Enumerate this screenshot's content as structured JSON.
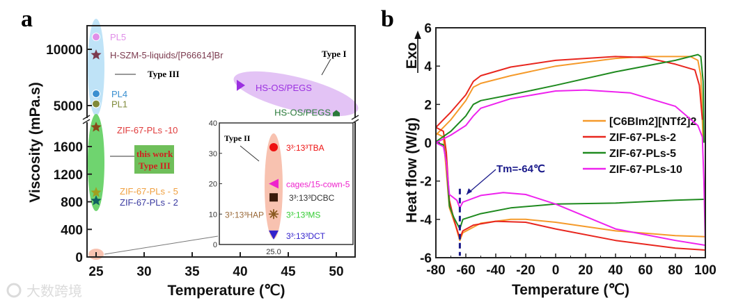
{
  "chart_data": [
    {
      "panel_label": "a",
      "type": "scatter",
      "xlabel": "Temperature (℃)",
      "ylabel": "Viscosity (mPa.s)",
      "xlim": [
        24,
        51.5
      ],
      "x_ticks": [
        25,
        30,
        35,
        40,
        45,
        50
      ],
      "y_lower": {
        "range": [
          0,
          1950
        ],
        "ticks": [
          0,
          400,
          800,
          1200,
          1600
        ]
      },
      "y_upper": {
        "range": [
          4300,
          11600
        ],
        "ticks": [
          5000,
          10000
        ]
      },
      "y_broken": true,
      "points": [
        {
          "label": "PL5",
          "x": 25,
          "y": 11100,
          "marker": "sphere",
          "color": "#e08ee8"
        },
        {
          "label": "H-SZM-5-liquids/[P66614]Br",
          "x": 25,
          "y": 9500,
          "marker": "star",
          "color": "#7b3a4e"
        },
        {
          "label": "PL4",
          "x": 25,
          "y": 6050,
          "marker": "sphere",
          "color": "#3a8fd0"
        },
        {
          "label": "PL1",
          "x": 25,
          "y": 5150,
          "marker": "sphere",
          "color": "#7f8a3a"
        },
        {
          "label": "ZIF-67-PLs -10",
          "x": 25,
          "y": 1880,
          "marker": "star",
          "color": "#8a4a1a",
          "text_color": "#e03a3a"
        },
        {
          "label": "ZIF-67-PLs - 5",
          "x": 25,
          "y": 935,
          "marker": "star",
          "color": "#a0a020",
          "text_color": "#f0a040"
        },
        {
          "label": "ZIF-67-PLs - 2",
          "x": 25,
          "y": 815,
          "marker": "star",
          "color": "#106060",
          "text_color": "#3a3aa0"
        },
        {
          "label": "HS-OS/PEGS",
          "x": 40,
          "y": 6800,
          "marker": "triangle-right",
          "color": "#9b30e0"
        },
        {
          "label": "HS-OS/PEGS",
          "x": 50,
          "y": 4300,
          "marker": "pentagon",
          "color": "#2a7a3a"
        }
      ],
      "annotations": {
        "type1": "Type I",
        "type3": "Type III",
        "this_work": "this work",
        "this_work_type": "Type III",
        "type2": "Type II"
      },
      "inset": {
        "ylim": [
          0,
          40
        ],
        "y_ticks": [
          0,
          10,
          20,
          30,
          40
        ],
        "x_tick": "25.0",
        "points": [
          {
            "label": "3³:13³TBA",
            "y": 32,
            "marker": "circle",
            "color": "#ee1111"
          },
          {
            "label": "cages/15-cown-5",
            "y": 20,
            "marker": "triangle-left",
            "color": "#ee22cc"
          },
          {
            "label": "3³:13³DCBC",
            "y": 15.5,
            "marker": "square",
            "color": "#3a1a0a",
            "text_color": "#333"
          },
          {
            "label": "3³:13³MS",
            "y": 10,
            "marker": "asterisk",
            "color": "#8a5a20",
            "text_color": "#33cc33"
          },
          {
            "label": "3³:13³HAP",
            "y": 10,
            "marker": "none",
            "color": "#8a5a20",
            "text_color": "#9a6a3a"
          },
          {
            "label": "3³:13³DCT",
            "y": 3,
            "marker": "triangle-down",
            "color": "#3322cc",
            "text_color": "#3322cc"
          }
        ]
      }
    },
    {
      "panel_label": "b",
      "type": "line",
      "xlabel": "Temperature (℃)",
      "ylabel": "Heat flow (W/g)",
      "exo_label": "Exo",
      "xlim": [
        -80,
        100
      ],
      "ylim": [
        -6,
        6
      ],
      "x_ticks": [
        -80,
        -60,
        -40,
        -20,
        0,
        20,
        40,
        60,
        80,
        100
      ],
      "y_ticks": [
        -6,
        -4,
        -2,
        0,
        2,
        4,
        6
      ],
      "annotation": {
        "text": "Tm=-64℃",
        "x": -64
      },
      "legend_position": "right",
      "series": [
        {
          "name": "[C6BIm2][NTf2]2",
          "color": "#f59a2a",
          "upper": [
            [
              -80,
              0.4
            ],
            [
              -70,
              1.2
            ],
            [
              -60,
              2.2
            ],
            [
              -55,
              2.9
            ],
            [
              -50,
              3.1
            ],
            [
              -30,
              3.5
            ],
            [
              0,
              4.0
            ],
            [
              40,
              4.4
            ],
            [
              60,
              4.5
            ],
            [
              90,
              4.5
            ],
            [
              95,
              4.3
            ],
            [
              97,
              3.5
            ],
            [
              98.5,
              0
            ]
          ],
          "lower": [
            [
              -80,
              0.5
            ],
            [
              -75,
              0.3
            ],
            [
              -73,
              -1.5
            ],
            [
              -71,
              -3.4
            ],
            [
              -67,
              -4.3
            ],
            [
              -64,
              -5.1
            ],
            [
              -62,
              -4.7
            ],
            [
              -50,
              -4.2
            ],
            [
              -30,
              -4.0
            ],
            [
              -20,
              -4.0
            ],
            [
              0,
              -4.15
            ],
            [
              40,
              -4.6
            ],
            [
              80,
              -4.85
            ],
            [
              100,
              -4.9
            ]
          ]
        },
        {
          "name": "ZIF-67-PLs-2",
          "color": "#e8261e",
          "upper": [
            [
              -80,
              0.8
            ],
            [
              -70,
              1.6
            ],
            [
              -60,
              2.5
            ],
            [
              -55,
              3.2
            ],
            [
              -50,
              3.5
            ],
            [
              -30,
              3.95
            ],
            [
              0,
              4.3
            ],
            [
              40,
              4.5
            ],
            [
              60,
              4.45
            ],
            [
              80,
              4.1
            ],
            [
              93,
              3.8
            ],
            [
              96,
              3.0
            ],
            [
              98,
              1.2
            ]
          ],
          "lower": [
            [
              -80,
              0.8
            ],
            [
              -75,
              0.6
            ],
            [
              -73,
              -0.5
            ],
            [
              -71,
              -3
            ],
            [
              -68,
              -4
            ],
            [
              -64,
              -5.0
            ],
            [
              -62,
              -4.6
            ],
            [
              -55,
              -4.3
            ],
            [
              -40,
              -4.1
            ],
            [
              -20,
              -4.15
            ],
            [
              0,
              -4.5
            ],
            [
              40,
              -5.1
            ],
            [
              80,
              -5.5
            ],
            [
              100,
              -5.6
            ]
          ]
        },
        {
          "name": "ZIF-67-PLs-5",
          "color": "#1f8a1f",
          "upper": [
            [
              -80,
              0.05
            ],
            [
              -70,
              0.6
            ],
            [
              -60,
              1.4
            ],
            [
              -55,
              2.0
            ],
            [
              -50,
              2.2
            ],
            [
              -30,
              2.5
            ],
            [
              0,
              3.0
            ],
            [
              40,
              3.7
            ],
            [
              80,
              4.3
            ],
            [
              95,
              4.6
            ],
            [
              97,
              4.5
            ],
            [
              98.5,
              3.2
            ],
            [
              99,
              0
            ]
          ],
          "lower": [
            [
              -80,
              0
            ],
            [
              -75,
              -0.1
            ],
            [
              -73,
              -1
            ],
            [
              -71,
              -3.3
            ],
            [
              -68,
              -3.9
            ],
            [
              -64,
              -4.5
            ],
            [
              -62,
              -4.0
            ],
            [
              -50,
              -3.7
            ],
            [
              -30,
              -3.4
            ],
            [
              0,
              -3.2
            ],
            [
              40,
              -3.15
            ],
            [
              80,
              -3.0
            ],
            [
              100,
              -2.95
            ]
          ]
        },
        {
          "name": "ZIF-67-PLs-10",
          "color": "#ee22ee",
          "upper": [
            [
              -80,
              0
            ],
            [
              -70,
              0.4
            ],
            [
              -60,
              0.9
            ],
            [
              -55,
              1.4
            ],
            [
              -50,
              1.8
            ],
            [
              -30,
              2.3
            ],
            [
              0,
              2.7
            ],
            [
              20,
              2.75
            ],
            [
              50,
              2.6
            ],
            [
              80,
              1.9
            ],
            [
              95,
              0.9
            ],
            [
              98,
              0.3
            ],
            [
              99,
              -2
            ],
            [
              100,
              -5.3
            ]
          ],
          "lower": [
            [
              -80,
              0
            ],
            [
              -75,
              -0.2
            ],
            [
              -73,
              -1
            ],
            [
              -71,
              -2.7
            ],
            [
              -66,
              -3.0
            ],
            [
              -64,
              -3.4
            ],
            [
              -62,
              -3.1
            ],
            [
              -50,
              -2.75
            ],
            [
              -35,
              -2.6
            ],
            [
              -20,
              -2.7
            ],
            [
              0,
              -3.2
            ],
            [
              40,
              -4.5
            ],
            [
              80,
              -5.1
            ],
            [
              100,
              -5.35
            ]
          ]
        }
      ]
    }
  ],
  "watermark": "大数跨境"
}
